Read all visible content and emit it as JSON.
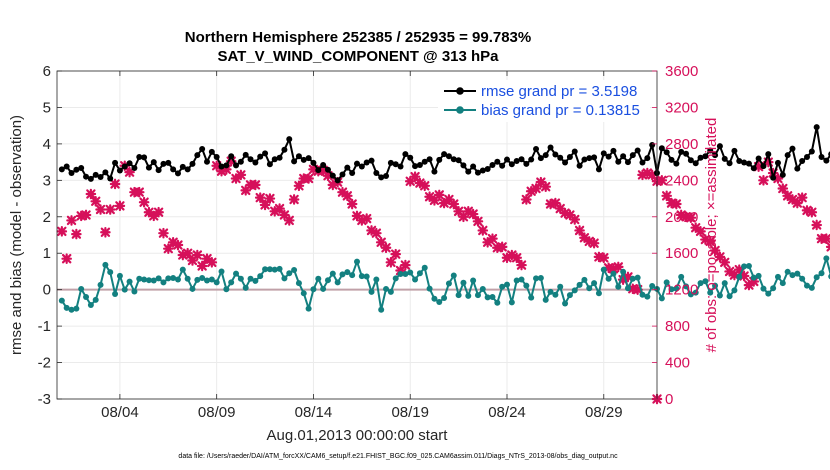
{
  "chart_data": {
    "type": "line",
    "title_line1": "Northern Hemisphere 252385 / 252935 = 99.783%",
    "title_line2": "SAT_V_WIND_COMPONENT @ 313 hPa",
    "xlabel": "Aug.01,2013 00:00:00 start",
    "ylabel_left": "rmse and bias (model - observation)",
    "ylabel_right": "# of obs: o=possible; ×=assimilated",
    "footer": "data file: /Users/raeder/DAI/ATM_forcXX/CAM6_setup/f.e21.FHIST_BGC.f09_025.CAM6assim.011/Diags_NTrS_2013-08/obs_diag_output.nc",
    "xlim": [
      0.75,
      31.75
    ],
    "ylim_left": [
      -3,
      6
    ],
    "ylim_right": [
      0,
      3600
    ],
    "x_ticks": [
      4,
      9,
      14,
      19,
      24,
      29
    ],
    "x_tick_labels": [
      "08/04",
      "08/09",
      "08/14",
      "08/19",
      "08/24",
      "08/29"
    ],
    "y_ticks_left": [
      -3,
      -2,
      -1,
      0,
      1,
      2,
      3,
      4,
      5,
      6
    ],
    "y_ticks_right": [
      0,
      400,
      800,
      1200,
      1600,
      2000,
      2400,
      2800,
      3200,
      3600
    ],
    "legend": [
      {
        "label": "rmse grand pr = 3.5198",
        "color": "#000000"
      },
      {
        "label": "bias grand pr = 0.13815",
        "color": "#138080"
      }
    ],
    "colors": {
      "rmse": "#000000",
      "bias": "#138080",
      "obs": "#d6105a",
      "zero": "#c0a0a8"
    },
    "step_days": 0.25,
    "x_start": 1.0,
    "series": [
      {
        "name": "rmse",
        "axis": "left",
        "values": [
          3.3,
          3.38,
          3.2,
          3.29,
          3.34,
          3.1,
          3.04,
          3.15,
          3.09,
          3.22,
          3.05,
          3.48,
          3.27,
          3.38,
          3.47,
          3.34,
          3.64,
          3.63,
          3.35,
          3.5,
          3.28,
          3.45,
          3.48,
          3.3,
          3.19,
          3.37,
          3.3,
          3.45,
          3.69,
          3.86,
          3.51,
          3.78,
          3.64,
          3.38,
          3.41,
          3.66,
          3.41,
          3.51,
          3.7,
          3.58,
          3.49,
          3.65,
          3.74,
          3.44,
          3.58,
          3.62,
          3.84,
          4.13,
          3.52,
          3.66,
          3.56,
          3.61,
          3.48,
          3.28,
          3.42,
          3.29,
          3.13,
          3.0,
          3.16,
          3.35,
          3.2,
          3.46,
          3.38,
          3.49,
          3.54,
          3.2,
          3.08,
          3.12,
          3.48,
          3.44,
          3.38,
          3.72,
          3.62,
          3.39,
          3.42,
          3.51,
          3.58,
          3.24,
          3.56,
          3.72,
          3.66,
          3.58,
          3.55,
          3.41,
          3.24,
          3.38,
          3.21,
          3.27,
          3.31,
          3.42,
          3.51,
          3.4,
          3.57,
          3.44,
          3.53,
          3.58,
          3.45,
          3.57,
          3.86,
          3.61,
          3.69,
          3.9,
          3.71,
          3.62,
          3.49,
          3.64,
          3.79,
          3.4,
          3.57,
          3.61,
          3.63,
          3.3,
          3.74,
          3.65,
          3.81,
          3.51,
          3.66,
          3.5,
          3.69,
          3.82,
          3.49,
          3.61,
          3.97,
          3.2,
          3.88,
          3.77,
          3.56,
          3.46,
          3.78,
          3.73,
          3.55,
          3.47,
          3.62,
          3.66,
          3.82,
          3.69,
          3.94,
          3.59,
          3.47,
          3.81,
          3.53,
          3.49,
          3.46,
          3.33,
          3.6,
          3.39,
          3.72,
          3.07,
          3.48,
          3.15,
          3.69,
          3.87,
          3.32,
          3.53,
          3.64,
          3.79,
          4.46,
          3.64,
          3.54,
          3.72,
          3.56,
          3.84,
          3.92,
          3.6,
          4.04,
          3.71,
          3.69,
          3.59,
          3.73,
          3.72,
          3.44,
          3.71,
          3.58,
          3.73,
          3.8,
          3.94
        ]
      },
      {
        "name": "bias",
        "axis": "left",
        "values": [
          -0.3,
          -0.5,
          -0.55,
          -0.52,
          0.02,
          -0.2,
          -0.42,
          -0.28,
          0.13,
          0.68,
          0.48,
          -0.12,
          0.38,
          0.0,
          0.22,
          -0.05,
          0.3,
          0.28,
          0.26,
          0.25,
          0.31,
          0.2,
          0.31,
          0.32,
          0.28,
          0.55,
          0.3,
          0.02,
          0.27,
          0.32,
          0.25,
          0.28,
          0.2,
          0.5,
          0.01,
          0.2,
          0.44,
          0.3,
          0.05,
          0.3,
          0.24,
          0.37,
          0.56,
          0.56,
          0.55,
          0.57,
          0.31,
          0.45,
          0.54,
          0.18,
          -0.1,
          -0.52,
          0.01,
          0.3,
          0.02,
          0.26,
          0.44,
          0.2,
          0.42,
          0.48,
          0.4,
          0.77,
          0.37,
          0.36,
          -0.06,
          0.28,
          -0.55,
          0.02,
          -0.06,
          0.31,
          0.43,
          0.43,
          0.47,
          0.28,
          0.45,
          0.6,
          0.03,
          -0.25,
          -0.34,
          -0.23,
          0.17,
          0.39,
          -0.15,
          0.19,
          -0.17,
          0.25,
          -0.15,
          0.02,
          -0.21,
          -0.2,
          -0.36,
          0.08,
          0.14,
          -0.35,
          0.25,
          0.28,
          0.11,
          -0.22,
          0.31,
          0.32,
          -0.28,
          -0.06,
          -0.14,
          0.08,
          -0.38,
          -0.15,
          -0.02,
          0.13,
          0.27,
          0.04,
          0.18,
          -0.1,
          0.55,
          0.3,
          0.44,
          0.08,
          0.49,
          0.04,
          0.3,
          0.33,
          -0.14,
          -0.19,
          0.1,
          0.02,
          -0.24,
          0.2,
          0.01,
          0.03,
          0.35,
          0.09,
          -0.13,
          -0.08,
          0.18,
          0.23,
          -0.08,
          0.11,
          -0.16,
          0.18,
          -0.18,
          -0.02,
          0.35,
          0.64,
          0.65,
          0.33,
          0.38,
          0.03,
          -0.11,
          0.04,
          0.35,
          0.18,
          0.49,
          0.4,
          0.44,
          0.3,
          0.11,
          0.05,
          0.34,
          0.45,
          0.86,
          0.36,
          0.37,
          0.15,
          0.07,
          0.3,
          0.33,
          -0.13,
          0.35,
          0.09,
          -0.2,
          -0.14,
          0.45,
          -0.29,
          -0.15,
          0.28,
          0.12,
          0.36,
          0.48,
          0.54
        ]
      },
      {
        "name": "obs_count",
        "axis": "right",
        "values": [
          1840,
          1540,
          1960,
          1810,
          2010,
          2020,
          2250,
          2170,
          2080,
          1830,
          2080,
          2360,
          2120,
          2560,
          2490,
          2270,
          2270,
          2160,
          2050,
          2010,
          2050,
          1820,
          1650,
          1720,
          1690,
          1580,
          1600,
          1520,
          1580,
          1460,
          1540,
          1500,
          2560,
          2500,
          2520,
          2610,
          2420,
          2460,
          2290,
          2350,
          2350,
          2210,
          2130,
          2200,
          2060,
          2090,
          2020,
          1960,
          2190,
          2340,
          2420,
          2420,
          2520,
          2500,
          2510,
          2450,
          2350,
          2380,
          2270,
          2230,
          2140,
          2010,
          1960,
          1980,
          1850,
          1820,
          1720,
          1660,
          1500,
          1590,
          1410,
          1470,
          2390,
          2440,
          2370,
          2340,
          2220,
          2180,
          2240,
          2150,
          2190,
          2140,
          2060,
          2000,
          2060,
          2030,
          1950,
          1850,
          1720,
          1760,
          1660,
          1670,
          1550,
          1580,
          1550,
          1470,
          2190,
          2280,
          2310,
          2380,
          2330,
          2140,
          2150,
          2090,
          2040,
          2020,
          1970,
          1850,
          1770,
          1730,
          1710,
          1560,
          1550,
          1440,
          1430,
          1450,
          1310,
          1340,
          1210,
          1200,
          2460,
          2480,
          2460,
          2390,
          2400,
          2230,
          2150,
          2140,
          2020,
          2000,
          1990,
          1880,
          1840,
          1750,
          1730,
          1630,
          1560,
          1500,
          1400,
          1360,
          1420,
          1350,
          1250,
          1290,
          2550,
          2400,
          2600,
          2480,
          2420,
          2310,
          2230,
          2190,
          2150,
          2210,
          2070,
          2050,
          1910,
          1760,
          1760,
          1670,
          1640,
          1580,
          1430,
          1470,
          1440,
          1320,
          1350,
          1210,
          1210,
          1200,
          2550,
          2560,
          2470,
          2250,
          2280,
          2130,
          1930,
          1650,
          1530,
          1330,
          1160,
          1220
        ]
      }
    ],
    "right_axis_marker": {
      "x": 31.75,
      "value": 0
    }
  }
}
